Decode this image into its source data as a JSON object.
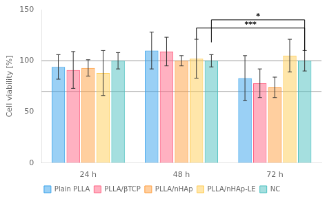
{
  "chart_data": {
    "type": "bar",
    "categories": [
      "24 h",
      "48 h",
      "72 h"
    ],
    "series": [
      {
        "name": "Plain PLLA",
        "values": [
          94,
          110,
          83
        ],
        "errors": [
          12,
          18,
          22
        ]
      },
      {
        "name": "PLLA/βTCP",
        "values": [
          91,
          109,
          78
        ],
        "errors": [
          18,
          14,
          14
        ]
      },
      {
        "name": "PLLA/nHAp",
        "values": [
          93,
          100,
          74
        ],
        "errors": [
          8,
          5,
          10
        ]
      },
      {
        "name": "PLLA/nHAp-LE",
        "values": [
          88,
          102,
          105
        ],
        "errors": [
          22,
          19,
          16
        ]
      },
      {
        "name": "NC",
        "values": [
          100,
          100,
          100
        ],
        "errors": [
          8,
          6,
          10
        ]
      }
    ],
    "ylabel": "Cell viability [%]",
    "ylim": [
      0,
      150
    ],
    "yticks": [
      0,
      50,
      100,
      150
    ],
    "hlines": [
      70,
      100
    ],
    "annotations": [
      {
        "text": "*",
        "from": {
          "category": "48 h",
          "series": "NC",
          "y": 118
        },
        "to": {
          "category": "72 h",
          "series": "NC",
          "y": 110
        },
        "y": 140
      },
      {
        "text": "***",
        "from": {
          "category": "48 h",
          "series": "PLLA/nHAp-LE",
          "y": 121
        },
        "to": {
          "category": "72 h",
          "series": "NC",
          "y": 110
        },
        "y": 132
      }
    ],
    "grid": false,
    "legend": "bottom"
  }
}
